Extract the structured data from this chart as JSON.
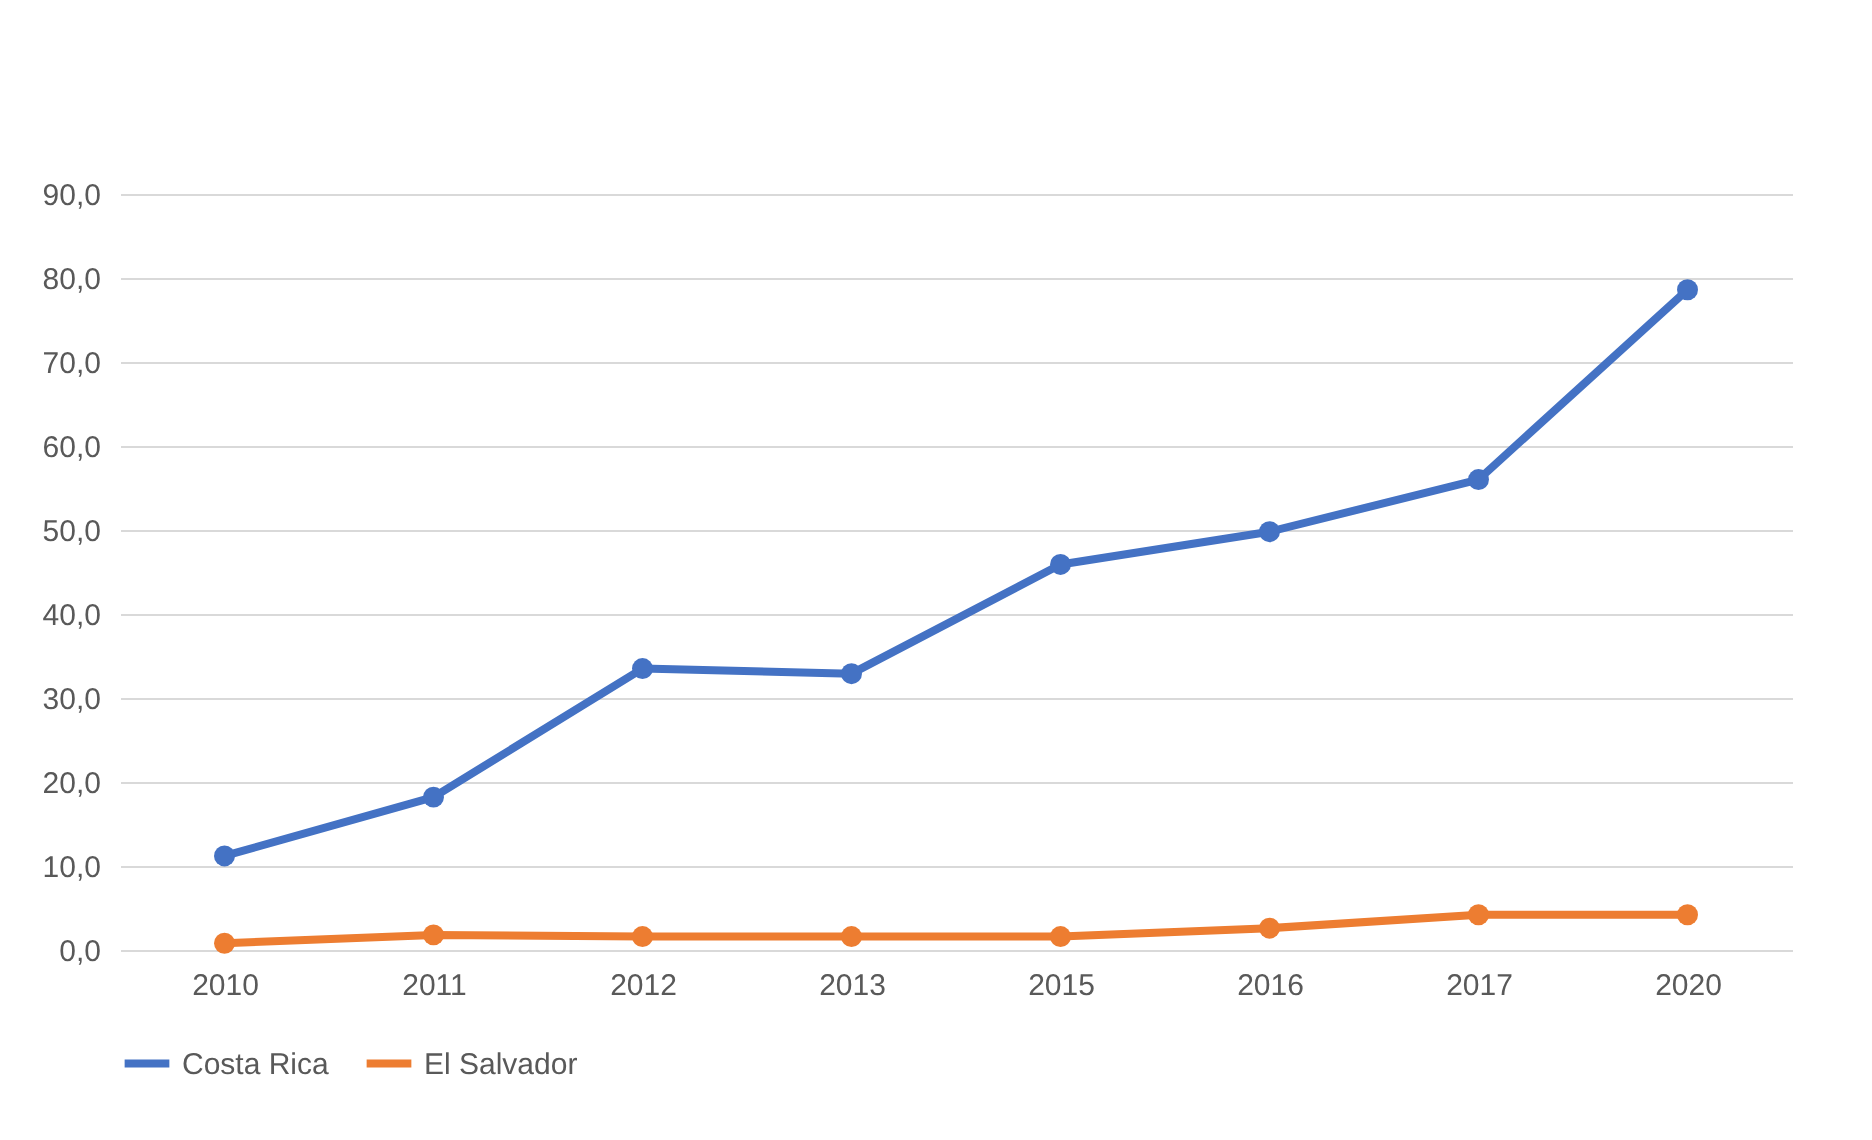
{
  "chart_data": {
    "type": "line",
    "categories": [
      "2010",
      "2011",
      "2012",
      "2013",
      "2015",
      "2016",
      "2017",
      "2020"
    ],
    "series": [
      {
        "name": "Costa Rica",
        "color": "#4472c4",
        "values": [
          11.2,
          18.2,
          33.5,
          32.9,
          45.9,
          49.8,
          56.0,
          78.6
        ]
      },
      {
        "name": "El Salvador",
        "color": "#ed7d31",
        "values": [
          0.8,
          1.8,
          1.6,
          1.6,
          1.6,
          2.6,
          4.2,
          4.2
        ]
      }
    ],
    "ylim": [
      0,
      90
    ],
    "yticks": [
      {
        "value": 0,
        "label": "0,0"
      },
      {
        "value": 10,
        "label": "10,0"
      },
      {
        "value": 20,
        "label": "20,0"
      },
      {
        "value": 30,
        "label": "30,0"
      },
      {
        "value": 40,
        "label": "40,0"
      },
      {
        "value": 50,
        "label": "50,0"
      },
      {
        "value": 60,
        "label": "60,0"
      },
      {
        "value": 70,
        "label": "70,0"
      },
      {
        "value": 80,
        "label": "80,0"
      },
      {
        "value": 90,
        "label": "90,0"
      }
    ],
    "grid": "y",
    "legend": "bottom",
    "marker": "circle",
    "line_style": "solid"
  }
}
